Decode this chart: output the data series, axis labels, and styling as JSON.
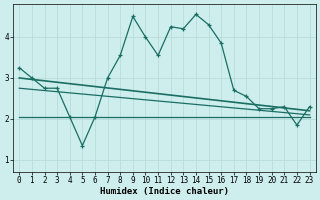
{
  "xlabel": "Humidex (Indice chaleur)",
  "xlim": [
    -0.5,
    23.5
  ],
  "ylim": [
    0.7,
    4.8
  ],
  "yticks": [
    1,
    2,
    3,
    4
  ],
  "xticks": [
    0,
    1,
    2,
    3,
    4,
    5,
    6,
    7,
    8,
    9,
    10,
    11,
    12,
    13,
    14,
    15,
    16,
    17,
    18,
    19,
    20,
    21,
    22,
    23
  ],
  "bg_color": "#cdeeed",
  "grid_color": "#b8dddb",
  "line_color": "#1a6e64",
  "line1_x": [
    0,
    1,
    2,
    3,
    4,
    5,
    6,
    7,
    8,
    9,
    10,
    11,
    12,
    13,
    14,
    15,
    16,
    17,
    18,
    19,
    20,
    21,
    22,
    23
  ],
  "line1_y": [
    3.25,
    3.0,
    2.75,
    2.75,
    2.05,
    1.35,
    2.05,
    3.0,
    3.55,
    4.5,
    4.0,
    3.55,
    4.25,
    4.2,
    4.55,
    4.3,
    3.85,
    2.7,
    2.55,
    2.25,
    2.25,
    2.3,
    1.85,
    2.3
  ],
  "line2_x": [
    0,
    23
  ],
  "line2_y": [
    3.0,
    2.2
  ],
  "line3_x": [
    0,
    23
  ],
  "line3_y": [
    2.75,
    2.1
  ],
  "line4_x": [
    0,
    23
  ],
  "line4_y": [
    2.05,
    2.05
  ],
  "xlabel_fontsize": 6.5,
  "tick_fontsize": 5.5
}
